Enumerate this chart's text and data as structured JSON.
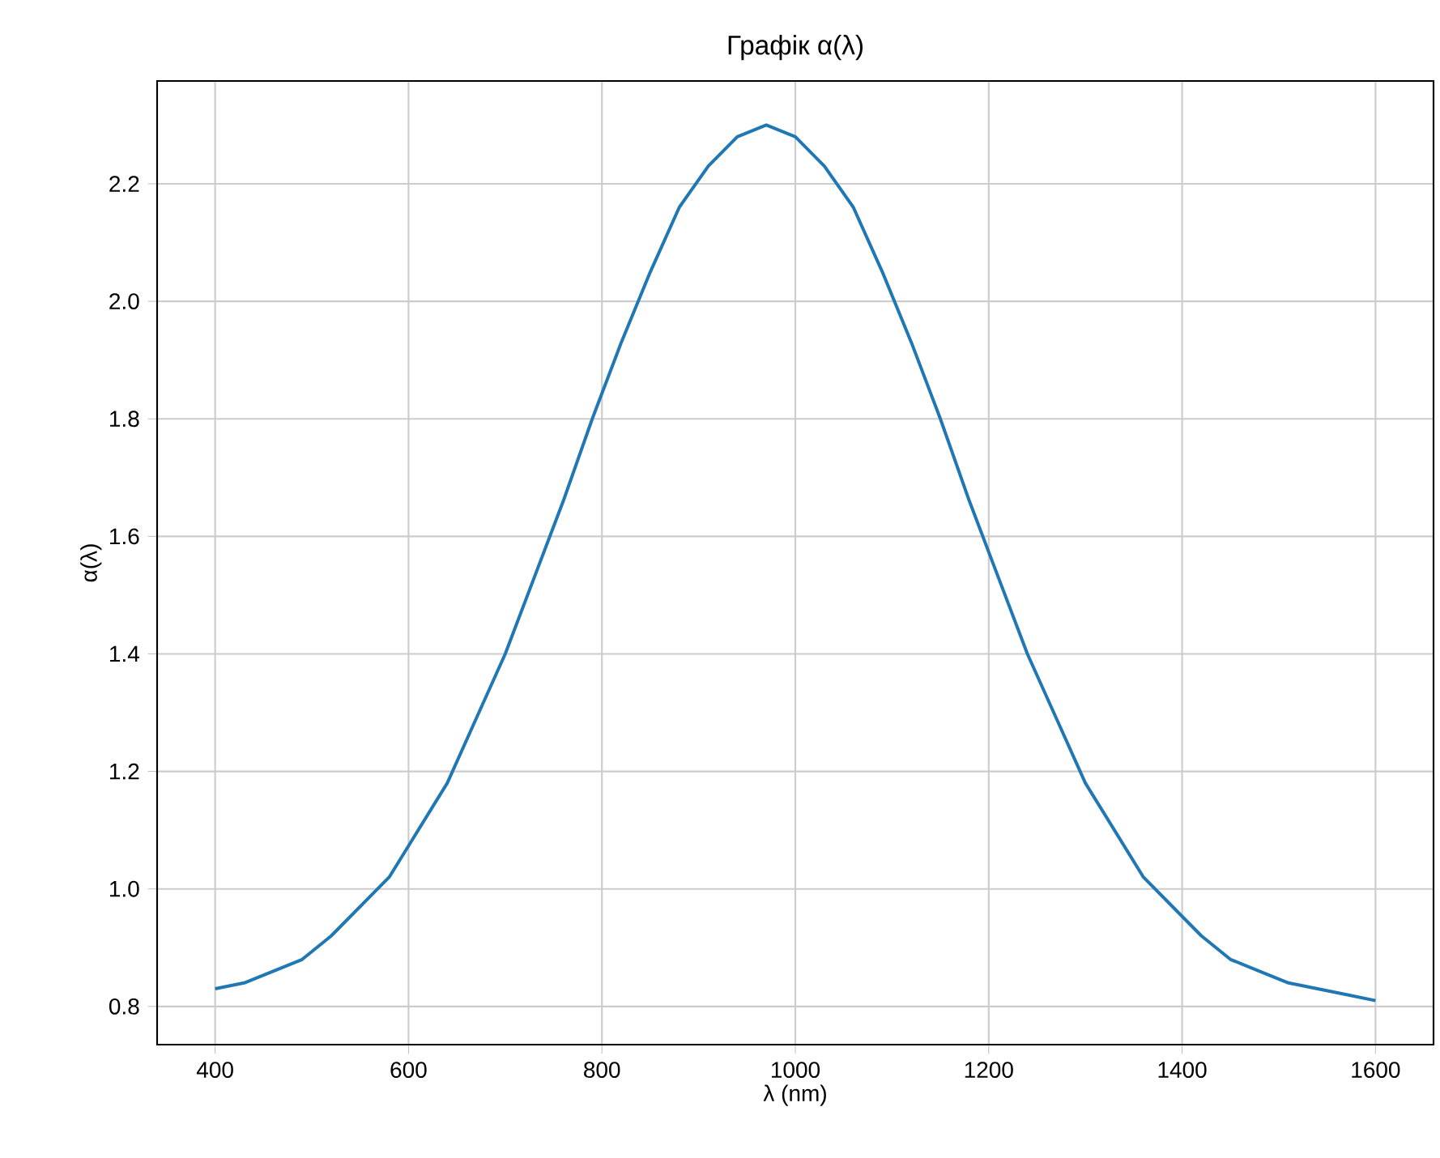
{
  "chart_data": {
    "type": "line",
    "title": "Графік α(λ)",
    "xlabel": "λ (nm)",
    "ylabel": "α(λ)",
    "x": [
      400,
      430,
      460,
      490,
      520,
      550,
      580,
      610,
      640,
      670,
      700,
      730,
      760,
      790,
      820,
      850,
      880,
      910,
      940,
      970,
      1000,
      1030,
      1060,
      1090,
      1120,
      1150,
      1180,
      1210,
      1240,
      1270,
      1300,
      1330,
      1360,
      1390,
      1420,
      1450,
      1480,
      1510,
      1540,
      1570,
      1600
    ],
    "values": [
      0.83,
      0.84,
      0.86,
      0.88,
      0.92,
      0.97,
      1.02,
      1.1,
      1.18,
      1.29,
      1.4,
      1.53,
      1.66,
      1.8,
      1.93,
      2.05,
      2.16,
      2.23,
      2.28,
      2.3,
      2.28,
      2.23,
      2.16,
      2.05,
      1.93,
      1.8,
      1.66,
      1.53,
      1.4,
      1.29,
      1.18,
      1.1,
      1.02,
      0.97,
      0.92,
      0.88,
      0.86,
      0.84,
      0.83,
      0.82,
      0.81
    ],
    "color": "#1f77b4",
    "xlim": [
      340,
      1660
    ],
    "ylim": [
      0.735,
      2.375
    ],
    "xticks": [
      400,
      600,
      800,
      1000,
      1200,
      1400,
      1600
    ],
    "yticks": [
      0.8,
      {
        "value": 1,
        "label": "1.0"
      },
      1.2,
      1.4,
      1.6,
      1.8,
      {
        "value": 2,
        "label": "2.0"
      },
      2.2
    ],
    "grid": true
  }
}
